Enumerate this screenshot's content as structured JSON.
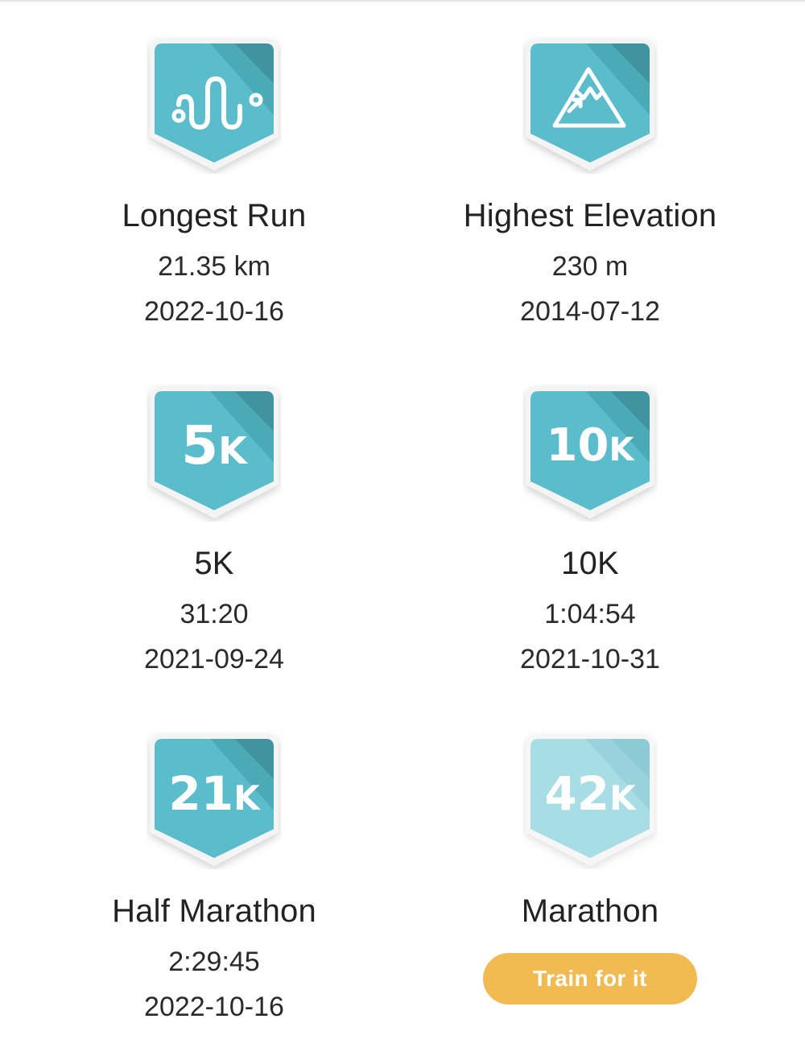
{
  "records": [
    {
      "icon": "winding-route-icon",
      "title": "Longest Run",
      "value": "21.35 km",
      "date": "2022-10-16"
    },
    {
      "icon": "mountain-icon",
      "title": "Highest Elevation",
      "value": "230 m",
      "date": "2014-07-12"
    },
    {
      "icon": "5k-badge-icon",
      "badge_num": "5",
      "badge_unit": "K",
      "title": "5K",
      "value": "31:20",
      "date": "2021-09-24"
    },
    {
      "icon": "10k-badge-icon",
      "badge_num": "10",
      "badge_unit": "K",
      "title": "10K",
      "value": "1:04:54",
      "date": "2021-10-31"
    },
    {
      "icon": "21k-badge-icon",
      "badge_num": "21",
      "badge_unit": "K",
      "title": "Half Marathon",
      "value": "2:29:45",
      "date": "2022-10-16"
    },
    {
      "icon": "42k-badge-icon",
      "badge_num": "42",
      "badge_unit": "K",
      "title": "Marathon",
      "locked": true,
      "cta_label": "Train for it"
    }
  ],
  "colors": {
    "badge_main": "#5bbccb",
    "badge_dark": "#3f9aa6",
    "badge_locked": "#a9dde6",
    "badge_locked_dark": "#8ccbd5",
    "cta_bg": "#f2bb52"
  }
}
